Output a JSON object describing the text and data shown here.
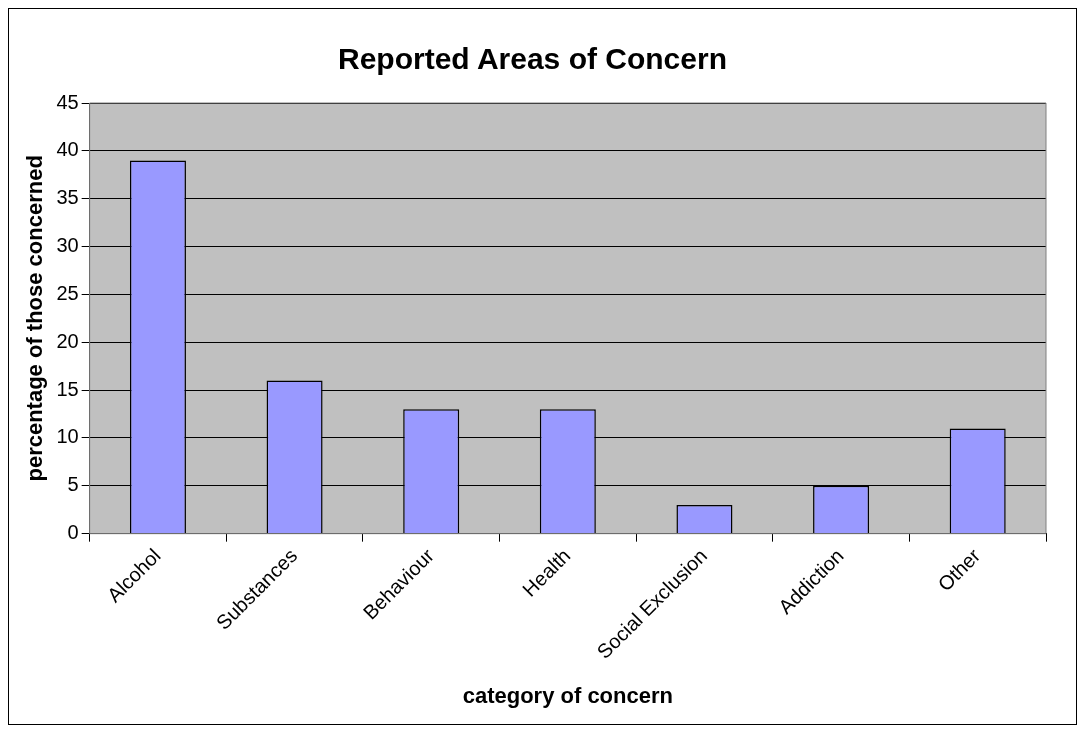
{
  "chart_data": {
    "type": "bar",
    "title": "Reported Areas of Concern",
    "xlabel": "category of concern",
    "ylabel": "percentage of those concerned",
    "categories": [
      "Alcohol",
      "Substances",
      "Behaviour",
      "Health",
      "Social Exclusion",
      "Addiction",
      "Other"
    ],
    "values": [
      39,
      16,
      13,
      13,
      3,
      5,
      11
    ],
    "color": "#9999ff",
    "ylim": [
      0,
      45
    ],
    "yticks": [
      0,
      5,
      10,
      15,
      20,
      25,
      30,
      35,
      40,
      45
    ],
    "grid": "y",
    "legend": false
  }
}
